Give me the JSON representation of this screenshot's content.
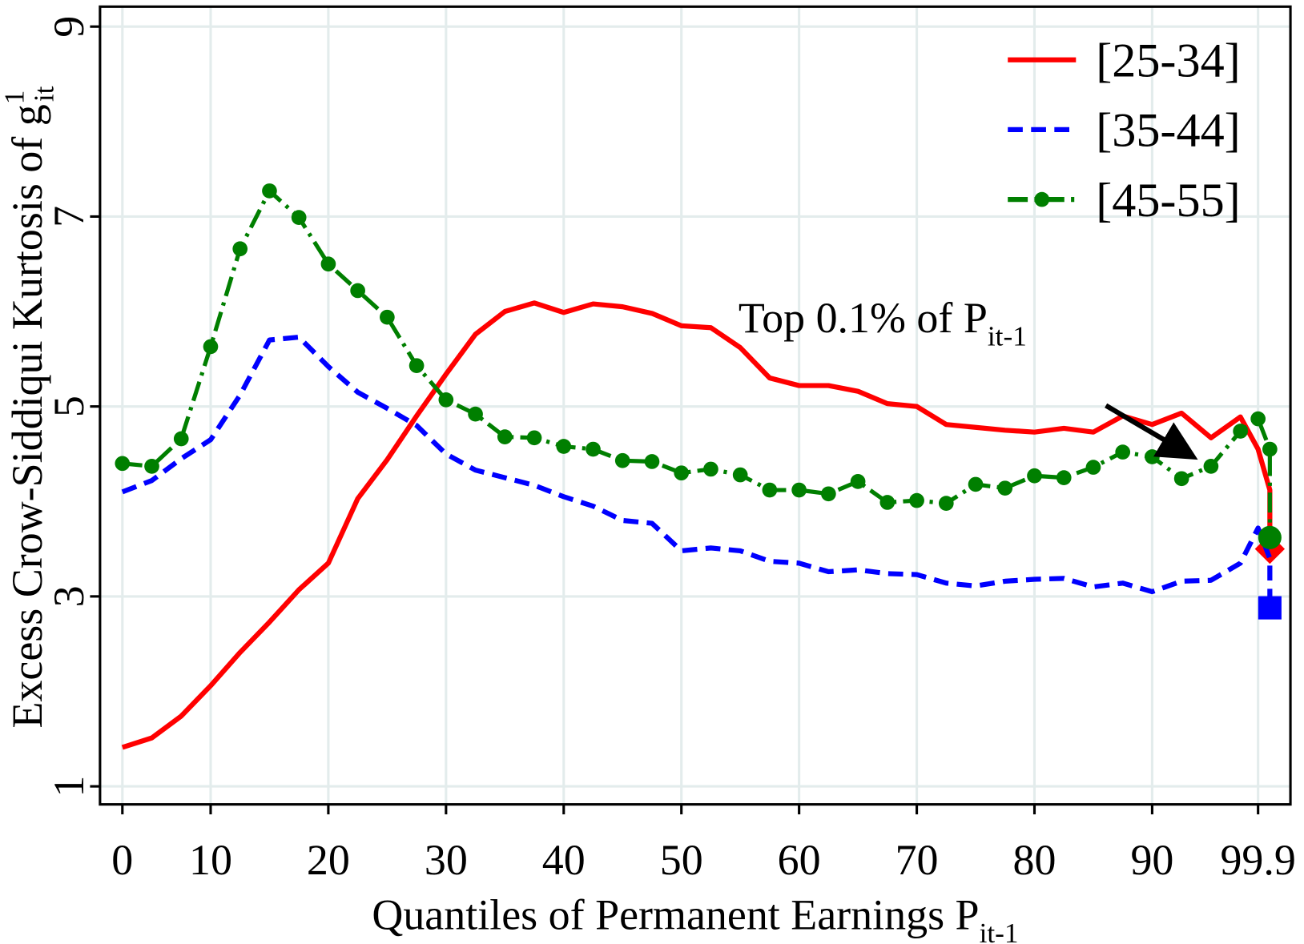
{
  "chart_data": {
    "type": "line",
    "xlabel": "Quantiles of Permanent Earnings P",
    "xlabel_sub": "it-1",
    "ylabel": "Excess Crow-Siddiqui Kurtosis of g",
    "ylabel_sup": "1",
    "ylabel_sub": "it",
    "annotation": "Top 0.1% of P",
    "annotation_sub": "it-1",
    "grid": true,
    "legend": "upper right",
    "xlim": [
      -0.76,
      39.7
    ],
    "ylim": [
      0.81,
      9.21
    ],
    "xticks": [
      {
        "value": 0,
        "label": "0"
      },
      {
        "value": 3,
        "label": "10"
      },
      {
        "value": 7,
        "label": "20"
      },
      {
        "value": 11,
        "label": "30"
      },
      {
        "value": 15,
        "label": "40"
      },
      {
        "value": 19,
        "label": "50"
      },
      {
        "value": 23,
        "label": "60"
      },
      {
        "value": 27,
        "label": "70"
      },
      {
        "value": 31,
        "label": "80"
      },
      {
        "value": 35,
        "label": "90"
      },
      {
        "value": 38.6,
        "label": "99.9"
      }
    ],
    "yticks": [
      1,
      3,
      5,
      7,
      9
    ],
    "x": [
      0,
      1,
      2,
      3,
      4,
      5,
      6,
      7,
      8,
      9,
      10,
      11,
      12,
      13,
      14,
      15,
      16,
      17,
      18,
      19,
      20,
      21,
      22,
      23,
      24,
      25,
      26,
      27,
      28,
      29,
      30,
      31,
      32,
      33,
      34,
      35,
      36,
      37,
      38,
      38.6,
      39,
      39
    ],
    "series": [
      {
        "name": "[25-34]",
        "color": "#ff0000",
        "linestyle": "solid",
        "end_marker": "diamond",
        "values": [
          1.41,
          1.51,
          1.74,
          2.06,
          2.41,
          2.73,
          3.07,
          3.35,
          4.03,
          4.44,
          4.9,
          5.34,
          5.76,
          6.0,
          6.09,
          5.99,
          6.08,
          6.05,
          5.98,
          5.85,
          5.83,
          5.62,
          5.3,
          5.22,
          5.22,
          5.16,
          5.03,
          5.0,
          4.81,
          4.78,
          4.75,
          4.73,
          4.77,
          4.73,
          4.9,
          4.81,
          4.93,
          4.67,
          4.89,
          4.55,
          4.12,
          3.5
        ]
      },
      {
        "name": "[35-44]",
        "color": "#0000ff",
        "linestyle": "dashed",
        "end_marker": "square",
        "values": [
          4.1,
          4.22,
          4.45,
          4.65,
          5.12,
          5.7,
          5.73,
          5.42,
          5.15,
          4.98,
          4.8,
          4.5,
          4.33,
          4.25,
          4.17,
          4.05,
          3.95,
          3.8,
          3.77,
          3.48,
          3.51,
          3.48,
          3.37,
          3.35,
          3.26,
          3.28,
          3.24,
          3.23,
          3.14,
          3.11,
          3.16,
          3.18,
          3.19,
          3.1,
          3.14,
          3.05,
          3.16,
          3.17,
          3.35,
          3.72,
          3.4,
          2.88
        ]
      },
      {
        "name": "[45-55]",
        "color": "#007f00",
        "linestyle": "dashdot",
        "marker": "circle",
        "end_marker": "circle",
        "values": [
          4.4,
          4.37,
          4.66,
          5.63,
          6.66,
          7.27,
          6.99,
          6.5,
          6.22,
          5.94,
          5.43,
          5.07,
          4.92,
          4.68,
          4.67,
          4.58,
          4.55,
          4.43,
          4.42,
          4.3,
          4.34,
          4.28,
          4.12,
          4.12,
          4.08,
          4.21,
          3.99,
          4.01,
          3.98,
          4.18,
          4.14,
          4.27,
          4.25,
          4.36,
          4.52,
          4.47,
          4.24,
          4.37,
          4.74,
          4.87,
          4.55,
          3.62
        ]
      }
    ]
  }
}
